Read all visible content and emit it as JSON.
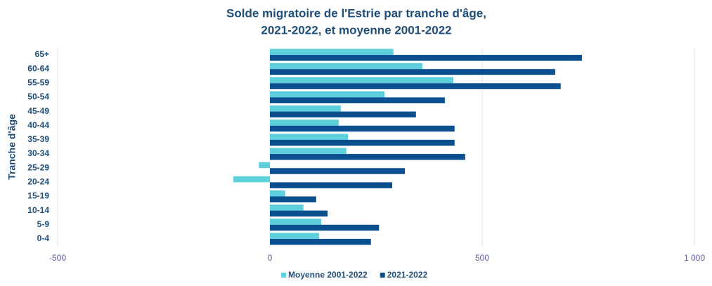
{
  "chart_data": {
    "type": "hbar",
    "title": [
      "Solde migratoire de l'Estrie par tranche d'âge,",
      "2021-2022, et moyenne 2001-2022"
    ],
    "y_label": "Tranche d'âge",
    "categories": [
      "65+",
      "60-64",
      "55-59",
      "50-54",
      "45-49",
      "40-44",
      "35-39",
      "30-34",
      "25-29",
      "20-24",
      "15-19",
      "10-14",
      "5-9",
      "0-4"
    ],
    "series": [
      {
        "name": "Moyenne 2001-2022",
        "color": "#5dd0dc",
        "values": [
          291,
          359,
          432,
          270,
          167,
          162,
          184,
          180,
          -26,
          -86,
          36,
          79,
          121,
          116
        ]
      },
      {
        "name": "2021-2022",
        "color": "#0b4f8f",
        "values": [
          735,
          672,
          685,
          412,
          344,
          435,
          435,
          460,
          318,
          288,
          109,
          136,
          257,
          238
        ]
      }
    ],
    "xlim": [
      -500,
      1000
    ],
    "xticks": [
      -500,
      0,
      500,
      {
        "value": 1000,
        "label": "1 000"
      }
    ],
    "grid": true,
    "legend": "bottom"
  }
}
